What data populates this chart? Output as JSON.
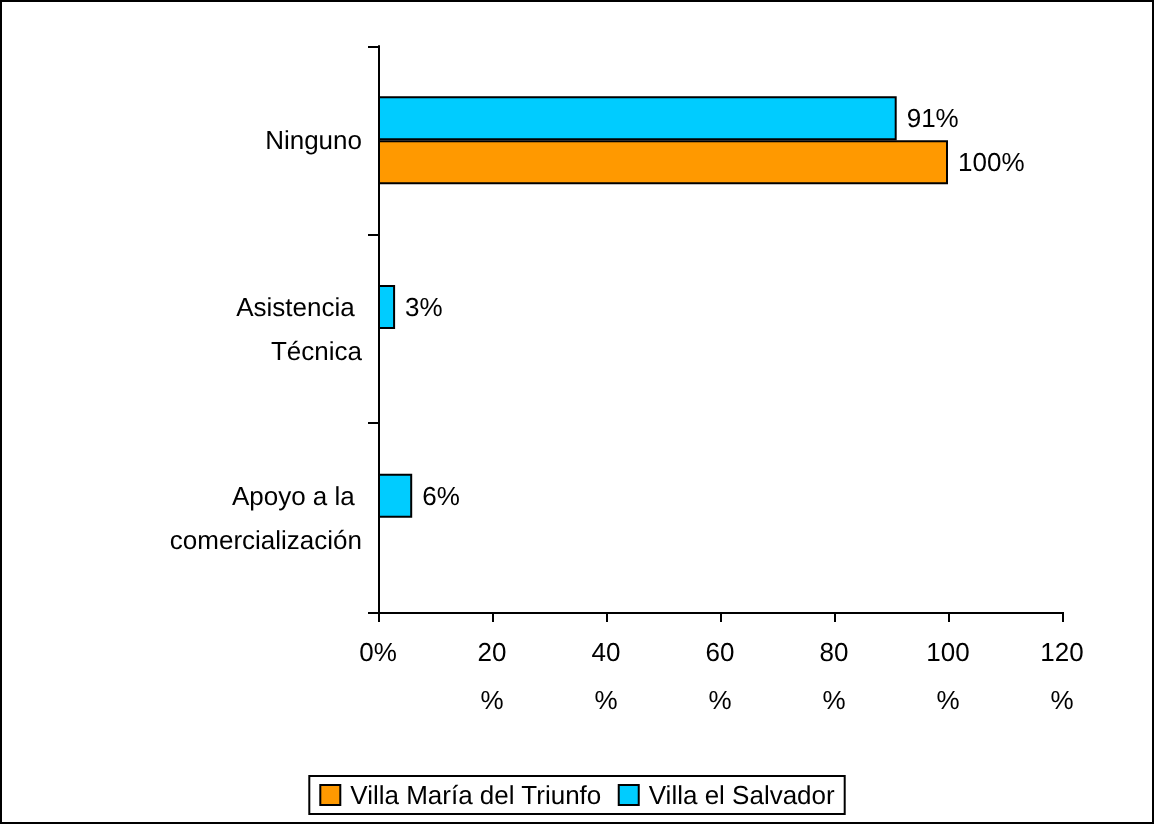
{
  "chart_data": {
    "type": "bar",
    "orientation": "horizontal",
    "categories": [
      "Ninguno",
      "Asistencia Técnica",
      "Apoyo a la comercialización"
    ],
    "series": [
      {
        "name": "Villa María del Triunfo",
        "color": "#ff9900",
        "values": [
          100,
          null,
          null
        ],
        "value_labels": [
          "100%",
          null,
          null
        ]
      },
      {
        "name": "Villa el Salvador",
        "color": "#00ccff",
        "values": [
          91,
          3,
          6
        ],
        "value_labels": [
          "91%",
          "3%",
          "6%"
        ]
      }
    ],
    "xlim": [
      0,
      120
    ],
    "xticks": [
      {
        "value": 0,
        "label": "0%"
      },
      {
        "value": 20,
        "label": "20%"
      },
      {
        "value": 40,
        "label": "40%"
      },
      {
        "value": 60,
        "label": "60%"
      },
      {
        "value": 80,
        "label": "80%"
      },
      {
        "value": 100,
        "label": "100%"
      },
      {
        "value": 120,
        "label": "120%"
      }
    ],
    "grid": false,
    "legend": "bottom"
  }
}
